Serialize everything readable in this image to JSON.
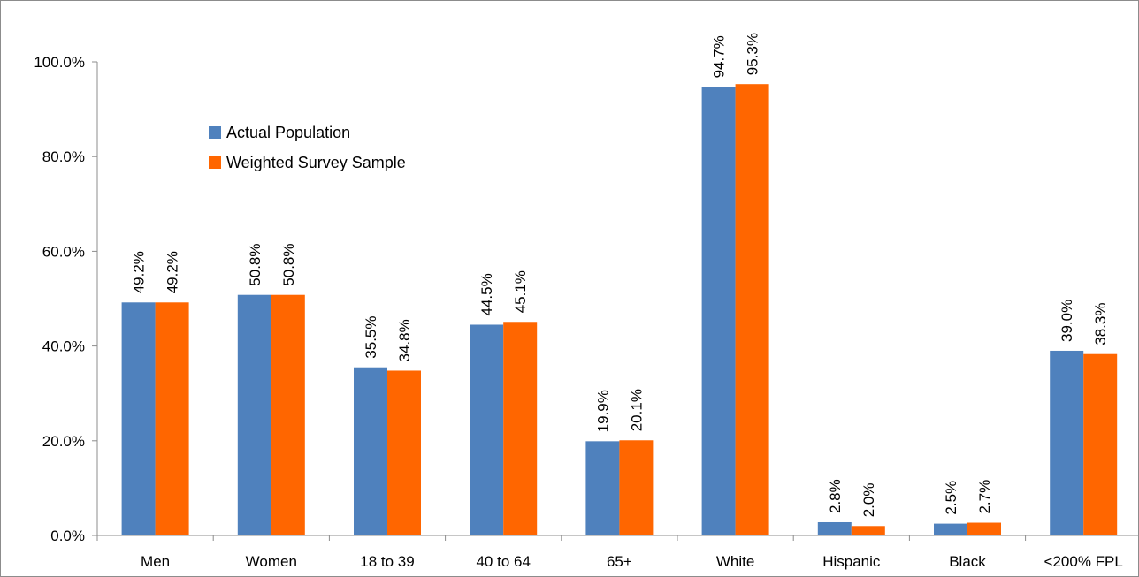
{
  "chart_data": {
    "type": "bar",
    "title": "",
    "xlabel": "",
    "ylabel": "",
    "categories": [
      "Men",
      "Women",
      "18 to 39",
      "40 to 64",
      "65+",
      "White",
      "Hispanic",
      "Black",
      "<200% FPL"
    ],
    "series": [
      {
        "name": "Actual Population",
        "color": "#4f81bd",
        "values": [
          49.2,
          50.8,
          35.5,
          44.5,
          19.9,
          94.7,
          2.8,
          2.5,
          39.0
        ],
        "labels": [
          "49.2%",
          "50.8%",
          "35.5%",
          "44.5%",
          "19.9%",
          "94.7%",
          "2.8%",
          "2.5%",
          "39.0%"
        ]
      },
      {
        "name": "Weighted Survey Sample",
        "color": "#ff6600",
        "values": [
          49.2,
          50.8,
          34.8,
          45.1,
          20.1,
          95.3,
          2.0,
          2.7,
          38.3
        ],
        "labels": [
          "49.2%",
          "50.8%",
          "34.8%",
          "45.1%",
          "20.1%",
          "95.3%",
          "2.0%",
          "2.7%",
          "38.3%"
        ]
      }
    ],
    "ylim": [
      0,
      100
    ],
    "yticks": [
      0,
      20,
      40,
      60,
      80,
      100
    ],
    "ytick_labels": [
      "0.0%",
      "20.0%",
      "40.0%",
      "60.0%",
      "80.0%",
      "100.0%"
    ],
    "grid": false,
    "legend_position": "upper-left"
  }
}
